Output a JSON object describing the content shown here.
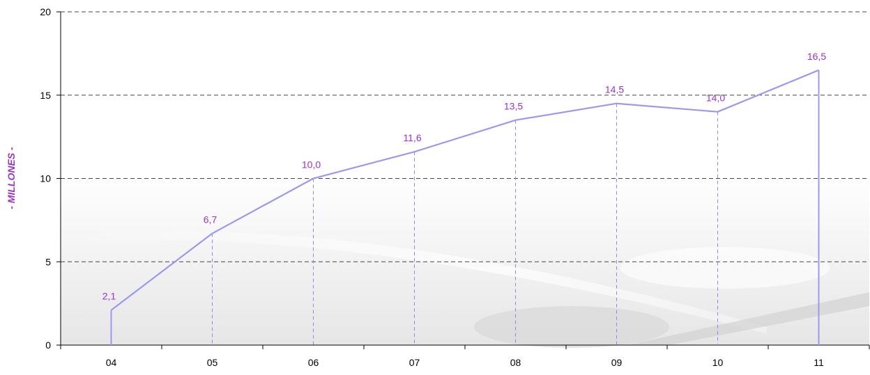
{
  "chart_data": {
    "type": "area",
    "categories": [
      "04",
      "05",
      "06",
      "07",
      "08",
      "09",
      "10",
      "11"
    ],
    "values": [
      2.1,
      6.7,
      10.0,
      11.6,
      13.5,
      14.5,
      14.0,
      16.5
    ],
    "data_labels": [
      "2,1",
      "6,7",
      "10,0",
      "11,6",
      "13,5",
      "14,5",
      "14,0",
      "16,5"
    ],
    "title": "",
    "xlabel": "",
    "ylabel": "- MILLONES -",
    "ylim": [
      0,
      20
    ],
    "yticks": [
      0,
      5,
      10,
      15,
      20
    ],
    "grid": true,
    "legend": "none",
    "colors": {
      "line": "#9999ee",
      "drop_line": "#8a8ae6",
      "data_label": "#9933cc",
      "ylabel": "#9933cc",
      "grid": "#444444",
      "axis": "#000000"
    }
  }
}
